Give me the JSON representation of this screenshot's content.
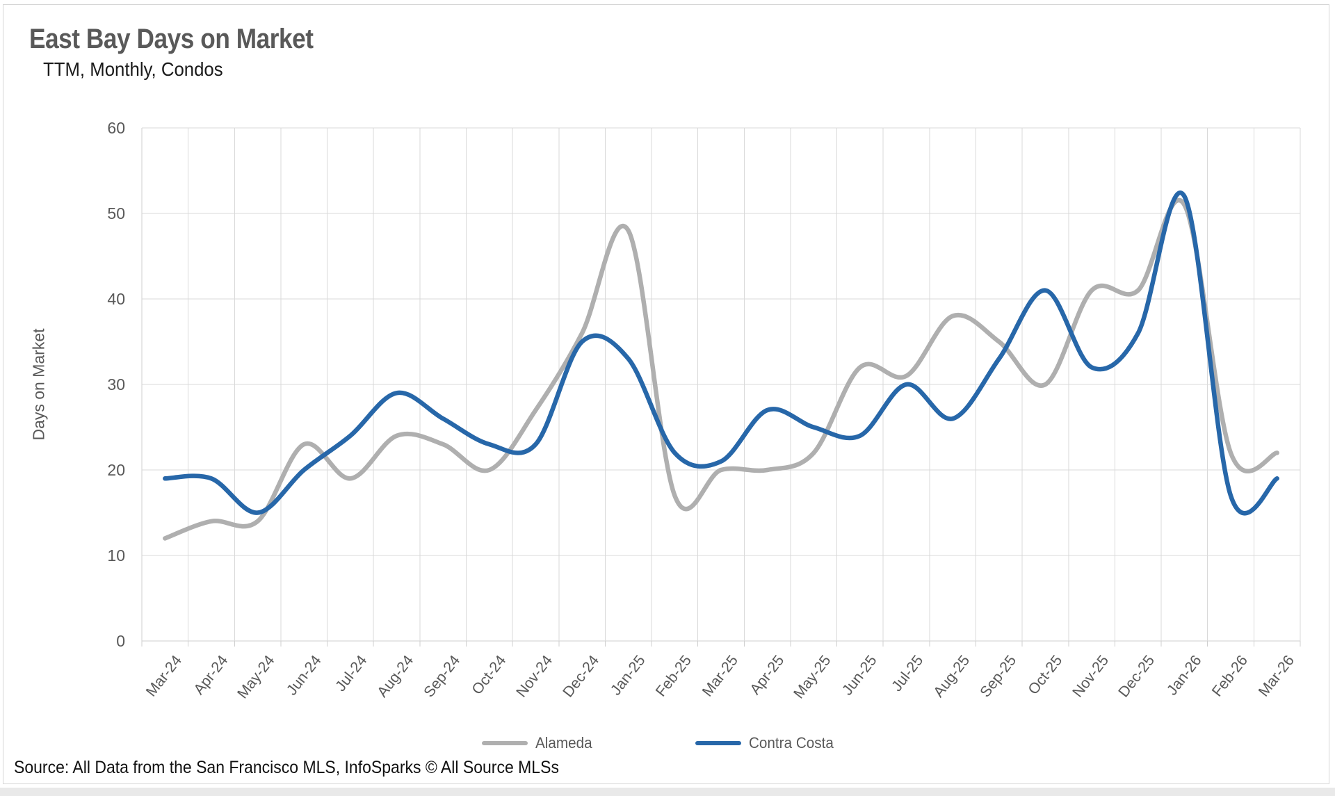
{
  "title": "East Bay Days on Market",
  "subtitle": "TTM, Monthly, Condos",
  "source": "Source: All Data from the San Francisco MLS, InfoSparks © All Source MLSs",
  "y_axis": {
    "title": "Days on Market",
    "min": 0,
    "max": 60,
    "tick_step": 10,
    "tick_labels": [
      "0",
      "10",
      "20",
      "30",
      "40",
      "50",
      "60"
    ]
  },
  "x_axis": {
    "labels": [
      "Mar-24",
      "Apr-24",
      "May-24",
      "Jun-24",
      "Jul-24",
      "Aug-24",
      "Sep-24",
      "Oct-24",
      "Nov-24",
      "Dec-24",
      "Jan-25",
      "Feb-25",
      "Mar-25",
      "Apr-25",
      "May-25",
      "Jun-25",
      "Jul-25",
      "Aug-25",
      "Sep-25",
      "Oct-25",
      "Nov-25",
      "Dec-25",
      "Jan-26",
      "Feb-26",
      "Mar-26"
    ]
  },
  "colors": {
    "grid": "#D9D9D9",
    "axis_line": "#CFCFCF",
    "axis_text": "#595959",
    "title_text": "#595959"
  },
  "chart_data": {
    "type": "line",
    "title": "East Bay Days on Market",
    "subtitle": "TTM, Monthly, Condos",
    "x": [
      "Mar-24",
      "Apr-24",
      "May-24",
      "Jun-24",
      "Jul-24",
      "Aug-24",
      "Sep-24",
      "Oct-24",
      "Nov-24",
      "Dec-24",
      "Jan-25",
      "Feb-25",
      "Mar-25",
      "Apr-25",
      "May-25",
      "Jun-25",
      "Jul-25",
      "Aug-25",
      "Sep-25",
      "Oct-25",
      "Nov-25",
      "Dec-25",
      "Jan-26",
      "Feb-26",
      "Mar-26"
    ],
    "xlabel": "",
    "ylabel": "Days on Market",
    "ylim": [
      0,
      60
    ],
    "grid": true,
    "line_style": "smooth",
    "legend_position": "bottom",
    "series": [
      {
        "name": "Alameda",
        "color": "#AFAFAF",
        "values": [
          12,
          14,
          14,
          23,
          19,
          24,
          23,
          20,
          27,
          36,
          48,
          17,
          20,
          20,
          22,
          32,
          31,
          38,
          35,
          30,
          41,
          41,
          51,
          22,
          22
        ]
      },
      {
        "name": "Contra Costa",
        "color": "#2767A9",
        "values": [
          19,
          19,
          15,
          20,
          24,
          29,
          26,
          23,
          23,
          35,
          33,
          22,
          21,
          27,
          25,
          24,
          30,
          26,
          33,
          41,
          32,
          36,
          52,
          17,
          19
        ]
      }
    ]
  }
}
